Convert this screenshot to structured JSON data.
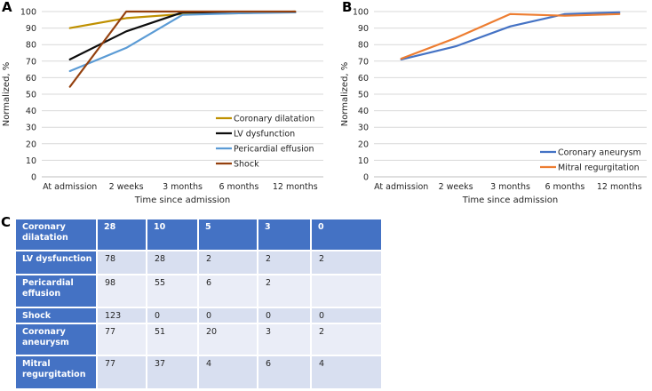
{
  "panels": {
    "a_label": "A",
    "b_label": "B",
    "c_label": "C"
  },
  "colors": {
    "grid": "#d9d9d9",
    "axis_line": "#bfbfbf",
    "tick_text": "#262626",
    "table_header_blue": "#4472C4",
    "table_band_dark": "#D8DFF0",
    "table_band_light": "#EAEDF7"
  },
  "chart_data": [
    {
      "id": "panel_a",
      "type": "line",
      "categories": [
        "At admission",
        "2 weeks",
        "3 months",
        "6 months",
        "12 months"
      ],
      "series": [
        {
          "name": "Coronary dilatation",
          "color": "#BF9000",
          "values": [
            90,
            96,
            98.5,
            99,
            100
          ]
        },
        {
          "name": "LV dysfunction",
          "color": "#0d0d0d",
          "values": [
            71,
            88,
            99.5,
            99.5,
            99.5
          ]
        },
        {
          "name": "Pericardial effusion",
          "color": "#5B9BD5",
          "values": [
            64,
            78,
            98,
            99,
            99.5
          ]
        },
        {
          "name": "Shock",
          "color": "#94400E",
          "values": [
            54.5,
            100,
            100,
            100,
            100
          ]
        }
      ],
      "xlabel": "Time since admission",
      "ylabel": "Normalized, %",
      "ylim": [
        0,
        100
      ],
      "yticks": [
        0,
        10,
        20,
        30,
        40,
        50,
        60,
        70,
        80,
        90,
        100
      ],
      "grid": true,
      "legend_position": "inside-right"
    },
    {
      "id": "panel_b",
      "type": "line",
      "categories": [
        "At admission",
        "2 weeks",
        "3 months",
        "6 months",
        "12 months"
      ],
      "series": [
        {
          "name": "Coronary aneurysm",
          "color": "#4472C4",
          "values": [
            71,
            79,
            91,
            98.5,
            99.5
          ]
        },
        {
          "name": "Mitral regurgitation",
          "color": "#ED7D31",
          "values": [
            71.5,
            84,
            98.5,
            97.5,
            98.5
          ]
        }
      ],
      "xlabel": "Time since admission",
      "ylabel": "Normalized, %",
      "ylim": [
        0,
        100
      ],
      "yticks": [
        0,
        10,
        20,
        30,
        40,
        50,
        60,
        70,
        80,
        90,
        100
      ],
      "grid": true,
      "legend_position": "inside-right"
    }
  ],
  "table": {
    "rows": [
      {
        "label": "Coronary dilatation",
        "values": [
          "28",
          "10",
          "5",
          "3",
          "0"
        ],
        "header": true
      },
      {
        "label": "LV dysfunction",
        "values": [
          "78",
          "28",
          "2",
          "2",
          "2"
        ],
        "header": false
      },
      {
        "label": "Pericardial effusion",
        "values": [
          "98",
          "55",
          "6",
          "2",
          ""
        ],
        "header": false
      },
      {
        "label": "Shock",
        "values": [
          "123",
          "0",
          "0",
          "0",
          "0"
        ],
        "header": false
      },
      {
        "label": "Coronary aneurysm",
        "values": [
          "77",
          "51",
          "20",
          "3",
          "2"
        ],
        "header": false
      },
      {
        "label": "Mitral regurgitation",
        "values": [
          "77",
          "37",
          "4",
          "6",
          "4"
        ],
        "header": false
      }
    ]
  }
}
